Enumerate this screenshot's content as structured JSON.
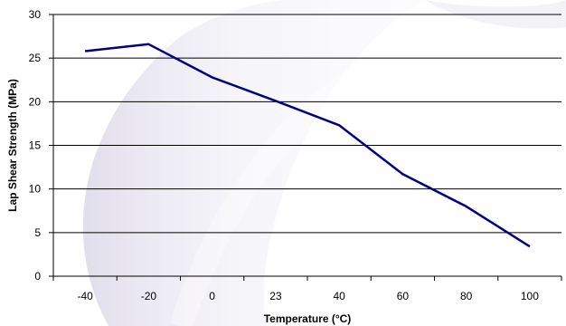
{
  "chart_data": {
    "type": "line",
    "title": "",
    "xlabel": "Temperature (°C)",
    "ylabel": "Lap Shear Strength (MPa)",
    "categories": [
      "-40",
      "-20",
      "0",
      "23",
      "40",
      "60",
      "80",
      "100"
    ],
    "series": [
      {
        "values": [
          25.8,
          26.6,
          22.8,
          20.1,
          17.3,
          11.7,
          8.0,
          3.4
        ]
      }
    ],
    "ylim": [
      0,
      30
    ],
    "yticks": [
      0,
      5,
      10,
      15,
      20,
      25,
      30
    ],
    "grid": true,
    "legend": "none",
    "colors": {
      "line": "#000080",
      "grid": "#000000",
      "axis": "#000000"
    }
  }
}
